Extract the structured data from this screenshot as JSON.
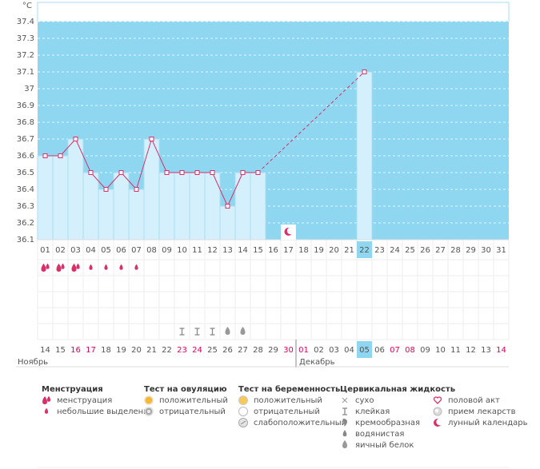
{
  "chart_data": {
    "type": "line",
    "unit": "°C",
    "categories": [
      "01",
      "02",
      "03",
      "04",
      "05",
      "06",
      "07",
      "08",
      "09",
      "10",
      "11",
      "12",
      "13",
      "14",
      "15",
      "16",
      "17",
      "18",
      "19",
      "20",
      "21",
      "22",
      "23",
      "24",
      "25",
      "26",
      "27",
      "28",
      "29",
      "30",
      "31"
    ],
    "values": [
      36.6,
      36.6,
      36.7,
      36.5,
      36.4,
      36.5,
      36.4,
      36.7,
      36.5,
      36.5,
      36.5,
      36.5,
      36.3,
      36.5,
      36.5,
      null,
      null,
      null,
      null,
      null,
      null,
      37.1,
      null,
      null,
      null,
      null,
      null,
      null,
      null,
      null,
      null
    ],
    "markers": [
      null,
      null,
      null,
      null,
      null,
      null,
      null,
      null,
      null,
      null,
      null,
      null,
      null,
      null,
      null,
      null,
      "лунный календарь",
      null,
      null,
      null,
      null,
      null,
      null,
      null,
      null,
      null,
      null,
      null,
      null,
      null,
      null
    ],
    "color": "#d8306a",
    "bar_color": "#d4f0fc",
    "background": "#8fd6f0",
    "ylim": [
      36.1,
      37.4
    ],
    "yticks": [
      36.1,
      36.2,
      36.3,
      36.4,
      36.5,
      36.6,
      36.7,
      36.8,
      36.9,
      37,
      37.1,
      37.2,
      37.3,
      37.4
    ],
    "grid": true
  },
  "symptoms": [
    [
      "менструация",
      "менструация",
      "менструация",
      "небольшие выделения",
      "небольшие выделения",
      "небольшие выделения",
      "небольшие выделения",
      null,
      null,
      null,
      null,
      null,
      null,
      null,
      null,
      null,
      null,
      null,
      null,
      null,
      null,
      null,
      null,
      null,
      null,
      null,
      null,
      null,
      null,
      null,
      null
    ],
    [
      null,
      null,
      null,
      null,
      null,
      null,
      null,
      null,
      null,
      "клейкая",
      "клейкая",
      "клейкая",
      "яичный белок",
      "яичный белок",
      null,
      null,
      null,
      null,
      null,
      null,
      null,
      null,
      null,
      null,
      null,
      null,
      null,
      null,
      null,
      null,
      null
    ]
  ],
  "months": [
    "Ноябрь",
    "Декабрь"
  ],
  "calendar": [
    {
      "label": "14",
      "weekend": false,
      "month": 0
    },
    {
      "label": "15",
      "weekend": false,
      "month": 0
    },
    {
      "label": "16",
      "weekend": true,
      "month": 0
    },
    {
      "label": "17",
      "weekend": true,
      "month": 0
    },
    {
      "label": "18",
      "weekend": false,
      "month": 0
    },
    {
      "label": "19",
      "weekend": false,
      "month": 0
    },
    {
      "label": "20",
      "weekend": false,
      "month": 0
    },
    {
      "label": "21",
      "weekend": false,
      "month": 0
    },
    {
      "label": "22",
      "weekend": false,
      "month": 0
    },
    {
      "label": "23",
      "weekend": true,
      "month": 0
    },
    {
      "label": "24",
      "weekend": true,
      "month": 0
    },
    {
      "label": "25",
      "weekend": false,
      "month": 0
    },
    {
      "label": "26",
      "weekend": false,
      "month": 0
    },
    {
      "label": "27",
      "weekend": false,
      "month": 0
    },
    {
      "label": "28",
      "weekend": false,
      "month": 0
    },
    {
      "label": "29",
      "weekend": false,
      "month": 0
    },
    {
      "label": "30",
      "weekend": true,
      "month": 0
    },
    {
      "label": "01",
      "weekend": true,
      "month": 1
    },
    {
      "label": "02",
      "weekend": false,
      "month": 1
    },
    {
      "label": "03",
      "weekend": false,
      "month": 1
    },
    {
      "label": "04",
      "weekend": false,
      "month": 1
    },
    {
      "label": "05",
      "weekend": false,
      "month": 1,
      "highlight": true
    },
    {
      "label": "06",
      "weekend": false,
      "month": 1
    },
    {
      "label": "07",
      "weekend": true,
      "month": 1
    },
    {
      "label": "08",
      "weekend": true,
      "month": 1
    },
    {
      "label": "09",
      "weekend": false,
      "month": 1
    },
    {
      "label": "10",
      "weekend": false,
      "month": 1
    },
    {
      "label": "11",
      "weekend": false,
      "month": 1
    },
    {
      "label": "12",
      "weekend": false,
      "month": 1
    },
    {
      "label": "13",
      "weekend": false,
      "month": 1
    },
    {
      "label": "14",
      "weekend": true,
      "month": 1
    }
  ],
  "weekend_color": "#e0005a",
  "legend": [
    {
      "title": "Менструация",
      "items": [
        "менструация",
        "небольшие выделения"
      ]
    },
    {
      "title": "Тест на овуляцию",
      "items": [
        "положительный",
        "отрицательный"
      ]
    },
    {
      "title": "Тест на беременность",
      "items": [
        "положительный",
        "отрицательный",
        "слабоположительный"
      ]
    },
    {
      "title": "Цервикальная жидкость",
      "items": [
        "сухо",
        "клейкая",
        "кремообразная",
        "водянистая",
        "яичный белок"
      ]
    },
    {
      "items": [
        "половой акт",
        "прием лекарств",
        "лунный календарь"
      ]
    }
  ]
}
